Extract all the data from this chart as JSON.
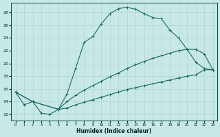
{
  "xlabel": "Humidex (Indice chaleur)",
  "bg_color": "#c8e8e5",
  "grid_color": "#b0d4d0",
  "line_color": "#1a6868",
  "xlim": [
    -0.5,
    23.5
  ],
  "ylim": [
    11.0,
    29.5
  ],
  "ytick_vals": [
    12,
    14,
    16,
    18,
    20,
    22,
    24,
    26,
    28
  ],
  "xtick_vals": [
    0,
    1,
    2,
    3,
    4,
    5,
    6,
    7,
    8,
    9,
    10,
    11,
    12,
    13,
    14,
    15,
    16,
    17,
    18,
    19,
    20,
    21,
    22,
    23
  ],
  "line1_x": [
    0,
    1,
    2,
    3,
    4,
    5,
    6,
    7,
    8,
    9,
    10,
    11,
    12,
    13,
    14,
    15,
    16,
    17,
    18,
    19,
    20,
    21,
    22,
    23
  ],
  "line1_y": [
    15.5,
    13.5,
    14.0,
    12.2,
    12.0,
    12.8,
    15.2,
    19.2,
    23.3,
    24.2,
    26.2,
    27.8,
    28.6,
    28.8,
    28.5,
    27.8,
    27.2,
    27.0,
    25.2,
    24.0,
    22.2,
    20.2,
    19.2,
    19.0
  ],
  "line2_x": [
    0,
    2,
    5,
    6,
    7,
    8,
    9,
    10,
    11,
    12,
    13,
    14,
    15,
    16,
    17,
    18,
    19,
    20,
    21,
    22,
    23
  ],
  "line2_y": [
    15.5,
    14.0,
    12.8,
    14.0,
    15.0,
    15.8,
    16.5,
    17.2,
    17.9,
    18.5,
    19.2,
    19.8,
    20.3,
    20.8,
    21.2,
    21.6,
    22.0,
    22.2,
    22.2,
    21.5,
    19.0
  ],
  "line3_x": [
    0,
    2,
    5,
    6,
    7,
    8,
    9,
    10,
    11,
    12,
    13,
    14,
    15,
    16,
    17,
    18,
    19,
    20,
    21,
    22,
    23
  ],
  "line3_y": [
    15.5,
    14.0,
    12.8,
    13.0,
    13.5,
    13.9,
    14.3,
    14.7,
    15.1,
    15.5,
    15.9,
    16.2,
    16.5,
    16.8,
    17.1,
    17.4,
    17.7,
    18.0,
    18.2,
    19.0,
    19.0
  ]
}
